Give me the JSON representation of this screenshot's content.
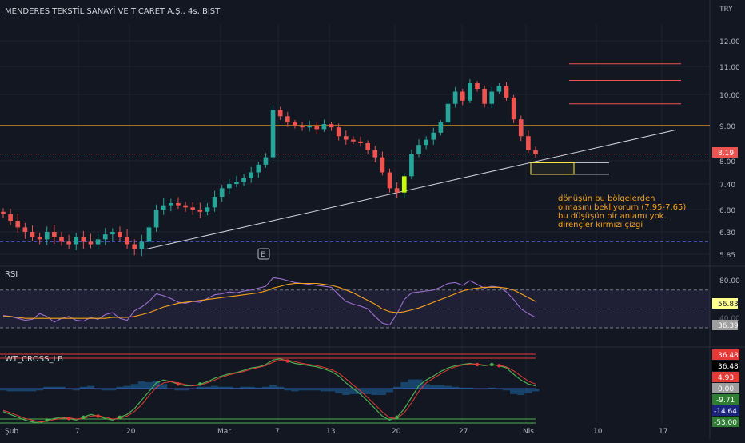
{
  "header": {
    "symbol_title": "MENDERES TEKSTİL SANAYİ VE TİCARET A.Ş., 4s, BIST",
    "currency": "TRY"
  },
  "colors": {
    "bg": "#131722",
    "grid": "#1f2330",
    "up": "#26a69a",
    "down": "#ef5350",
    "hline": "#f7a21b",
    "trend": "#d1d4dc",
    "rsi": "#9c6fcf",
    "rsi_ma": "#f7a21b",
    "wt1": "#4caf50",
    "wt2": "#e53935"
  },
  "annotation": {
    "lines": [
      "dönüşün bu bölgelerden",
      "olmasını bekliyorum (7.95-7.65)",
      "bu düşüşün bir anlamı yok.",
      "dirençler kırmızı çizgi"
    ],
    "zone": [
      7.65,
      7.95
    ]
  },
  "earnings_marker": "E",
  "chart_data": [
    {
      "type": "candlestick",
      "title": "MENDERES TEKSTİL SANAYİ VE TİCARET A.Ş., 4s, BIST",
      "y_ticks": [
        "12.00",
        "11.00",
        "10.00",
        "9.00",
        "8.00",
        "7.40",
        "6.80",
        "6.30",
        "5.85"
      ],
      "y_tick_values": [
        12.0,
        11.0,
        10.0,
        9.0,
        8.0,
        7.4,
        6.8,
        6.3,
        5.85
      ],
      "x_ticks": [
        "Şub",
        "7",
        "20",
        "Mar",
        "7",
        "13",
        "20",
        "27",
        "Nis",
        "10",
        "17"
      ],
      "last_price": "8.19",
      "horizontal_level": 9.0,
      "dashed_support": 6.1,
      "resistance_levels": [
        11.1,
        10.5,
        9.7
      ],
      "close_series": [
        6.7,
        6.55,
        6.4,
        6.3,
        6.2,
        6.15,
        6.3,
        6.2,
        6.1,
        6.05,
        6.2,
        6.1,
        6.05,
        6.15,
        6.25,
        6.3,
        6.2,
        6.05,
        5.95,
        6.1,
        6.4,
        6.8,
        6.9,
        6.95,
        6.9,
        6.85,
        6.8,
        6.75,
        6.85,
        7.1,
        7.3,
        7.4,
        7.45,
        7.55,
        7.7,
        7.9,
        8.1,
        9.5,
        9.3,
        9.1,
        9.0,
        8.95,
        9.0,
        8.9,
        9.05,
        8.95,
        8.7,
        8.6,
        8.55,
        8.5,
        8.3,
        8.1,
        7.7,
        7.3,
        7.2,
        7.6,
        8.2,
        8.45,
        8.6,
        8.8,
        9.1,
        9.7,
        10.1,
        9.8,
        10.4,
        10.2,
        9.7,
        10.1,
        10.3,
        9.9,
        9.2,
        8.7,
        8.3,
        8.19
      ],
      "trendline": [
        [
          5.95,
          8.88
        ]
      ]
    },
    {
      "type": "line",
      "title": "RSI",
      "y_ticks": [
        "80.00"
      ],
      "value_labels": [
        "56.83",
        "36.39"
      ],
      "partial_tick": "40.00",
      "rsi_series": [
        43,
        42,
        40,
        38,
        39,
        45,
        42,
        36,
        40,
        42,
        38,
        37,
        41,
        39,
        44,
        46,
        40,
        38,
        48,
        52,
        58,
        66,
        64,
        61,
        57,
        56,
        58,
        57,
        61,
        65,
        66,
        68,
        67,
        69,
        70,
        72,
        74,
        83,
        82,
        80,
        78,
        77,
        76,
        75,
        74,
        73,
        65,
        58,
        55,
        53,
        50,
        42,
        35,
        33,
        45,
        60,
        67,
        68,
        69,
        70,
        73,
        77,
        78,
        75,
        80,
        76,
        72,
        74,
        73,
        68,
        60,
        50,
        45,
        41
      ],
      "ma_series": [
        42,
        42,
        41,
        40,
        40,
        40,
        40,
        40,
        40,
        40,
        40,
        40,
        40,
        40,
        40,
        41,
        41,
        41,
        42,
        44,
        46,
        49,
        52,
        54,
        56,
        57,
        58,
        59,
        60,
        61,
        62,
        63,
        64,
        65,
        66,
        67,
        69,
        72,
        74,
        76,
        77,
        77,
        77,
        77,
        76,
        75,
        73,
        70,
        67,
        63,
        59,
        55,
        50,
        47,
        46,
        47,
        49,
        51,
        54,
        57,
        60,
        63,
        66,
        69,
        71,
        72,
        73,
        73,
        73,
        72,
        70,
        66,
        62,
        58
      ],
      "levels": [
        70,
        30
      ]
    },
    {
      "type": "line",
      "title": "WT_CROSS_LB",
      "value_labels": [
        "36.48",
        "36.48",
        "4.93",
        "0.00",
        "-9.71",
        "-14.64",
        "-53.00"
      ],
      "wt1_series": [
        -40,
        -45,
        -50,
        -55,
        -58,
        -60,
        -55,
        -52,
        -50,
        -52,
        -55,
        -50,
        -45,
        -48,
        -52,
        -55,
        -50,
        -45,
        -35,
        -20,
        -5,
        10,
        15,
        12,
        8,
        5,
        5,
        8,
        12,
        18,
        22,
        26,
        28,
        32,
        36,
        38,
        42,
        50,
        52,
        48,
        44,
        42,
        40,
        38,
        34,
        30,
        22,
        10,
        0,
        -10,
        -22,
        -35,
        -48,
        -55,
        -50,
        -35,
        -15,
        5,
        15,
        22,
        30,
        36,
        40,
        42,
        44,
        42,
        40,
        42,
        40,
        36,
        25,
        15,
        8,
        4.93
      ],
      "wt2_series": [
        -38,
        -42,
        -47,
        -52,
        -55,
        -58,
        -57,
        -54,
        -52,
        -51,
        -53,
        -52,
        -48,
        -47,
        -50,
        -53,
        -52,
        -48,
        -40,
        -28,
        -12,
        2,
        10,
        12,
        10,
        7,
        5,
        6,
        10,
        15,
        20,
        24,
        27,
        30,
        34,
        37,
        40,
        46,
        50,
        50,
        47,
        44,
        42,
        40,
        37,
        33,
        27,
        17,
        6,
        -4,
        -16,
        -28,
        -41,
        -51,
        -52,
        -42,
        -25,
        -5,
        10,
        18,
        26,
        33,
        38,
        41,
        43,
        43,
        41,
        41,
        41,
        38,
        31,
        22,
        13,
        8
      ],
      "levels": [
        53,
        60,
        0,
        -53,
        -60
      ]
    }
  ]
}
